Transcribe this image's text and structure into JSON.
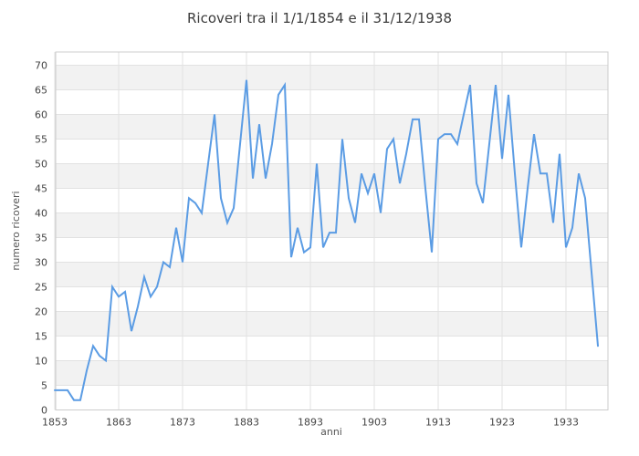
{
  "chart": {
    "title": "Ricoveri tra il 1/1/1854 e il 31/12/1938",
    "xlabel": "anni",
    "ylabel": "numero ricoveri"
  },
  "chart_data": {
    "type": "line",
    "title": "Ricoveri tra il 1/1/1854 e il 31/12/1938",
    "xlabel": "anni",
    "ylabel": "numero ricoveri",
    "legend": "none",
    "grid": "horizontal-gridlines-with-alternating-bands",
    "ylim": [
      0,
      70
    ],
    "ytick_step": 5,
    "xticks": [
      1853,
      1863,
      1873,
      1883,
      1893,
      1903,
      1913,
      1923,
      1933
    ],
    "x": [
      1853,
      1854,
      1855,
      1856,
      1857,
      1858,
      1859,
      1860,
      1861,
      1862,
      1863,
      1864,
      1865,
      1866,
      1867,
      1868,
      1869,
      1870,
      1871,
      1872,
      1873,
      1874,
      1875,
      1876,
      1877,
      1878,
      1879,
      1880,
      1881,
      1882,
      1883,
      1884,
      1885,
      1886,
      1887,
      1888,
      1889,
      1890,
      1891,
      1892,
      1893,
      1894,
      1895,
      1896,
      1897,
      1898,
      1899,
      1900,
      1901,
      1902,
      1903,
      1904,
      1905,
      1906,
      1907,
      1908,
      1909,
      1910,
      1911,
      1912,
      1913,
      1914,
      1915,
      1916,
      1917,
      1918,
      1919,
      1920,
      1921,
      1922,
      1923,
      1924,
      1925,
      1926,
      1927,
      1928,
      1929,
      1930,
      1931,
      1932,
      1933,
      1934,
      1935,
      1936,
      1937,
      1938
    ],
    "values": [
      4,
      4,
      4,
      2,
      2,
      8,
      13,
      11,
      10,
      25,
      23,
      24,
      16,
      21,
      27,
      23,
      25,
      30,
      29,
      37,
      30,
      43,
      42,
      40,
      50,
      60,
      43,
      38,
      41,
      54,
      67,
      47,
      58,
      47,
      54,
      64,
      66,
      31,
      37,
      32,
      33,
      50,
      33,
      36,
      36,
      55,
      43,
      38,
      48,
      44,
      48,
      40,
      53,
      55,
      46,
      52,
      59,
      59,
      45,
      32,
      55,
      56,
      56,
      54,
      60,
      66,
      46,
      42,
      54,
      66,
      51,
      64,
      48,
      33,
      45,
      56,
      48,
      48,
      38,
      52,
      33,
      37,
      48,
      43,
      28,
      13
    ],
    "line_color": "#5b9ce4",
    "band_color": "#f2f2f2",
    "grid_color": "#e2e2e2",
    "border_color": "#cccccc",
    "tick_color": "#444444",
    "axis_title_color": "#555555",
    "title_color": "#3c3c3c"
  }
}
